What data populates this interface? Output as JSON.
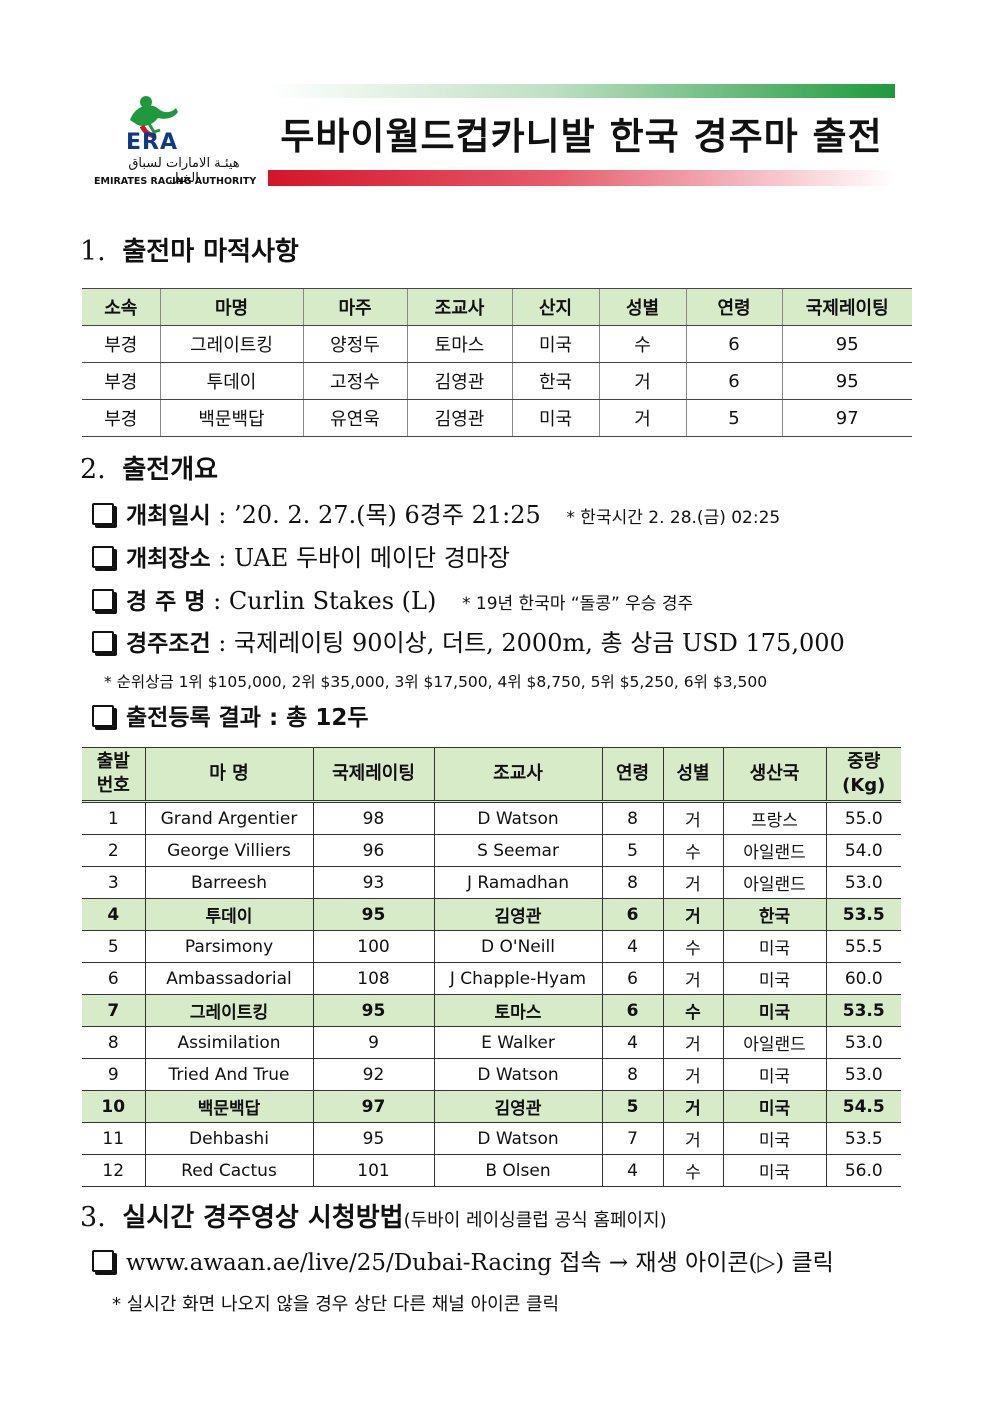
{
  "header": {
    "logo_text": "ERA",
    "logo_arabic": "هيئـة الامارات لسباق الخيل",
    "logo_org": "EMIRATES RACING AUTHORITY",
    "title": "두바이월드컵카니발 한국 경주마 출전"
  },
  "section1": {
    "num": "1.",
    "title": "출전마 마적사항",
    "columns": [
      "소속",
      "마명",
      "마주",
      "조교사",
      "산지",
      "성별",
      "연령",
      "국제레이팅"
    ],
    "rows": [
      [
        "부경",
        "그레이트킹",
        "양정두",
        "토마스",
        "미국",
        "수",
        "6",
        "95"
      ],
      [
        "부경",
        "투데이",
        "고정수",
        "김영관",
        "한국",
        "거",
        "6",
        "95"
      ],
      [
        "부경",
        "백문백답",
        "유연욱",
        "김영관",
        "미국",
        "거",
        "5",
        "97"
      ]
    ]
  },
  "section2": {
    "num": "2.",
    "title": "출전개요",
    "items": [
      {
        "label": "개최일시",
        "sep": " : ",
        "value": "’20. 2. 27.(목) 6경주 21:25",
        "note": "* 한국시간 2. 28.(금) 02:25"
      },
      {
        "label": "개최장소",
        "sep": " : ",
        "value": "UAE 두바이 메이단 경마장",
        "note": ""
      },
      {
        "label": "경 주 명",
        "sep": " : ",
        "value": "Curlin Stakes (L)",
        "note": "* 19년 한국마 “돌콩” 우승 경주"
      },
      {
        "label": "경주조건",
        "sep": " : ",
        "value": "국제레이팅 90이상, 더트, 2000m, 총 상금 USD 175,000",
        "note": ""
      }
    ],
    "prize_note": "* 순위상금 1위 $105,000, 2위 $35,000, 3위 $17,500, 4위 $8,750, 5위 $5,250, 6위  $3,500",
    "entry_label": "출전등록 결과 : 총 12두",
    "entry_columns": [
      "출발\n번호",
      "마 명",
      "국제레이팅",
      "조교사",
      "연령",
      "성별",
      "생산국",
      "중량\n(Kg)"
    ],
    "entries": [
      [
        "1",
        "Grand Argentier",
        "98",
        "D Watson",
        "8",
        "거",
        "프랑스",
        "55.0"
      ],
      [
        "2",
        "George Villiers",
        "96",
        "S Seemar",
        "5",
        "수",
        "아일랜드",
        "54.0"
      ],
      [
        "3",
        "Barreesh",
        "93",
        "J Ramadhan",
        "8",
        "거",
        "아일랜드",
        "53.0"
      ],
      [
        "4",
        "투데이",
        "95",
        "김영관",
        "6",
        "거",
        "한국",
        "53.5"
      ],
      [
        "5",
        "Parsimony",
        "100",
        "D O'Neill",
        "4",
        "수",
        "미국",
        "55.5"
      ],
      [
        "6",
        "Ambassadorial",
        "108",
        "J Chapple-Hyam",
        "6",
        "거",
        "미국",
        "60.0"
      ],
      [
        "7",
        "그레이트킹",
        "95",
        "토마스",
        "6",
        "수",
        "미국",
        "53.5"
      ],
      [
        "8",
        "Assimilation",
        "9",
        "E Walker",
        "4",
        "거",
        "아일랜드",
        "53.0"
      ],
      [
        "9",
        "Tried And True",
        "92",
        "D Watson",
        "8",
        "거",
        "미국",
        "53.0"
      ],
      [
        "10",
        "백문백답",
        "97",
        "김영관",
        "5",
        "거",
        "미국",
        "54.5"
      ],
      [
        "11",
        "Dehbashi",
        "95",
        "D Watson",
        "7",
        "거",
        "미국",
        "53.5"
      ],
      [
        "12",
        "Red Cactus",
        "101",
        "B Olsen",
        "4",
        "수",
        "미국",
        "56.0"
      ]
    ],
    "korean_rows": [
      4,
      7,
      10
    ]
  },
  "section3": {
    "num": "3.",
    "title": "실시간 경주영상 시청방법",
    "subtitle": "(두바이 레이싱클럽 공식 홈페이지)",
    "link_line": "www.awaan.ae/live/25/Dubai-Racing 접속 → 재생 아이콘(▷) 클릭",
    "note": "* 실시간 화면 나오지 않을 경우 상단 다른 채널 아이콘 클릭"
  },
  "colors": {
    "header_green": "#1e9a3c",
    "header_red": "#d4142a",
    "table_header_bg": "#d8ebc9"
  }
}
